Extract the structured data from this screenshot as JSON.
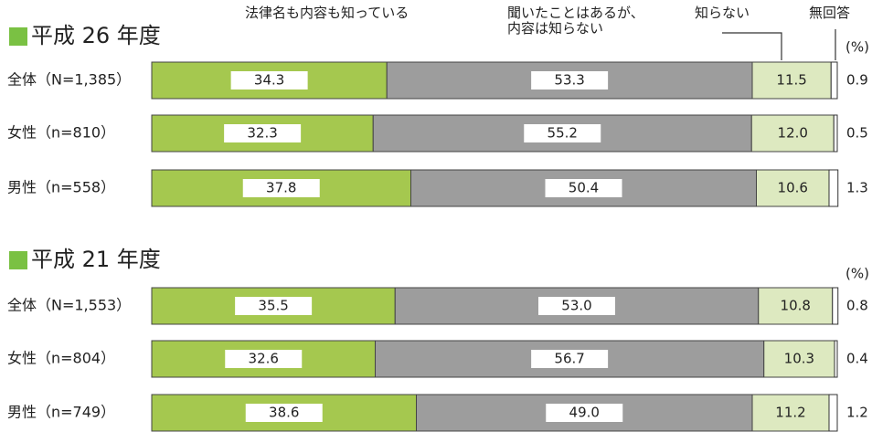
{
  "chart_data": [
    {
      "type": "stacked-bar-horizontal",
      "title": "平成 26 年度",
      "unit": "(%)",
      "xlim": [
        0,
        100
      ],
      "categories": [
        "全体（N=1,385）",
        "女性（n=810）",
        "男性（n=558）"
      ],
      "series": [
        {
          "name": "法律名も内容も知っている",
          "color": "#a5c84f",
          "values": [
            34.3,
            32.3,
            37.8
          ]
        },
        {
          "name": "聞いたことはあるが、\n内容は知らない",
          "color": "#9d9d9d",
          "values": [
            53.3,
            55.2,
            50.4
          ]
        },
        {
          "name": "知らない",
          "color": "#dde9c0",
          "values": [
            11.5,
            12.0,
            10.6
          ],
          "value_labels": [
            "11.5",
            "12.0",
            "10.6"
          ]
        },
        {
          "name": "無回答",
          "color": "#ffffff",
          "values": [
            0.9,
            0.5,
            1.3
          ]
        }
      ]
    },
    {
      "type": "stacked-bar-horizontal",
      "title": "平成 21 年度",
      "unit": "(%)",
      "xlim": [
        0,
        100
      ],
      "categories": [
        "全体（N=1,553）",
        "女性（n=804）",
        "男性（n=749）"
      ],
      "series": [
        {
          "color": "#a5c84f",
          "values": [
            35.5,
            32.6,
            38.6
          ]
        },
        {
          "color": "#9d9d9d",
          "values": [
            53.0,
            56.7,
            49.0
          ],
          "value_labels": [
            "53.0",
            "56.7",
            "49.0"
          ]
        },
        {
          "color": "#dde9c0",
          "values": [
            10.8,
            10.3,
            11.2
          ]
        },
        {
          "color": "#ffffff",
          "values": [
            0.8,
            0.4,
            1.2
          ]
        }
      ]
    }
  ]
}
